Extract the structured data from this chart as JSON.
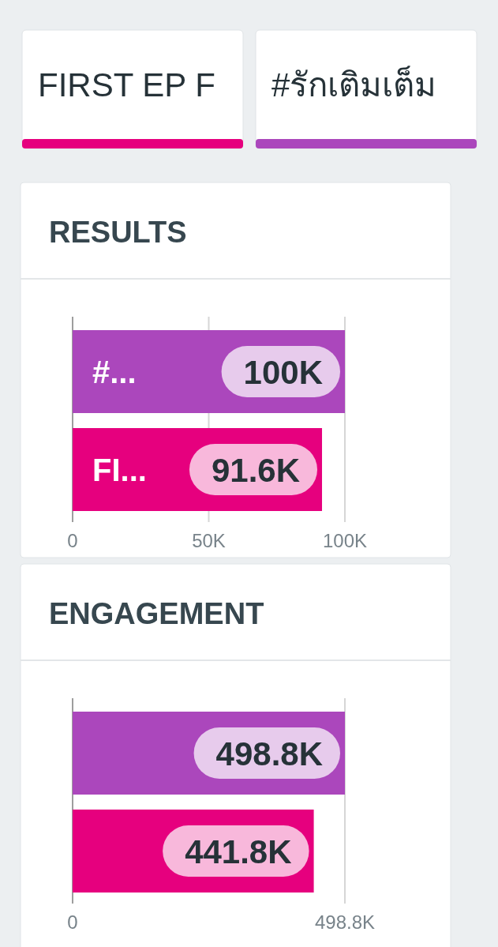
{
  "chart_data": [
    {
      "type": "bar",
      "orientation": "horizontal",
      "title": "RESULTS",
      "annotations": [
        "FIRST EP F",
        "#รักเติมเต็ม"
      ],
      "categories": [
        "#...",
        "FI..."
      ],
      "values": [
        100000,
        91600
      ],
      "colors": [
        "#ab47bc",
        "#e6007e"
      ],
      "value_labels": [
        "100K",
        "91.6K"
      ],
      "xlim": [
        0,
        100000
      ],
      "xticks": [
        0,
        {
          "value": 50000,
          "label": "50K"
        },
        {
          "value": 100000,
          "label": "100K"
        }
      ],
      "grid": "x"
    },
    {
      "type": "bar",
      "orientation": "horizontal",
      "title": "ENGAGEMENT",
      "categories": [
        null,
        null
      ],
      "values": [
        498800,
        441800
      ],
      "colors": [
        "#ab47bc",
        "#e6007e"
      ],
      "value_labels": [
        "498.8K",
        "441.8K"
      ],
      "xlim": [
        0,
        498800
      ],
      "xticks": [
        0,
        {
          "value": 498800,
          "label": "498.8K"
        }
      ],
      "grid": "x"
    }
  ]
}
